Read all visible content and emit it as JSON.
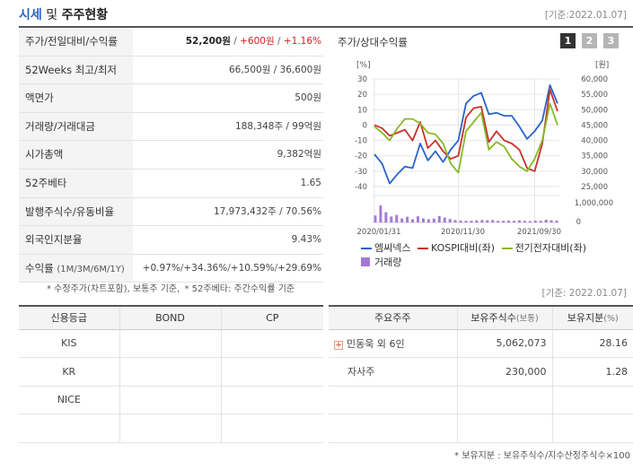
{
  "header": {
    "title_prefix": "시세",
    "title_mid": "및",
    "title_suffix": "주주현황",
    "basis": "[기준:2022.01.07]"
  },
  "info": {
    "rows": [
      {
        "label": "주가/전일대비/수익률",
        "price": "52,200원",
        "sep1": " / ",
        "change": "+600원",
        "sep2": " / ",
        "rate": "+1.16%"
      },
      {
        "label": "52Weeks 최고/최저",
        "value": "66,500원 / 36,600원"
      },
      {
        "label": "액면가",
        "value": "500원"
      },
      {
        "label": "거래량/거래대금",
        "value": "188,348주 / 99억원"
      },
      {
        "label": "시가총액",
        "value": "9,382억원"
      },
      {
        "label": "52주베타",
        "value": "1.65"
      },
      {
        "label": "발행주식수/유동비율",
        "value": "17,973,432주 / 70.56%"
      },
      {
        "label": "외국인지분율",
        "value": "9.43%"
      }
    ],
    "returns": {
      "label": "수익률",
      "label_sub": "(1M/3M/6M/1Y)",
      "r1m": "+0.97%",
      "r3m": "+34.36%",
      "r6m": "+10.59%",
      "r1y": "+29.69%",
      "sep": "/"
    },
    "notes": [
      "* 수정주가(차트포함), 보통주 기준,",
      "* 52주베타: 주간수익률 기준"
    ]
  },
  "chart_panel": {
    "title": "주가/상대수익률",
    "period_buttons": [
      "1",
      "2",
      "3"
    ]
  },
  "chart_data": {
    "type": "line",
    "left_axis": {
      "unit": "[%]",
      "ticks": [
        30,
        20,
        10,
        0,
        -10,
        -20,
        -30,
        -40
      ],
      "ylim": [
        -40,
        30
      ]
    },
    "right_axis": {
      "unit": "[원]",
      "ticks": [
        "60,000",
        "55,000",
        "50,000",
        "45,000",
        "40,000",
        "35,000",
        "30,000",
        "25,000"
      ],
      "ylim": [
        25000,
        60000
      ]
    },
    "volume_axis": {
      "ticks": [
        "1,000,000",
        "0"
      ],
      "ylim": [
        0,
        1000000
      ]
    },
    "x_labels": [
      "2020/01/31",
      "2020/11/30",
      "2021/09/30"
    ],
    "series": [
      {
        "name": "엠씨넥스",
        "color": "#2a63c8",
        "values": [
          -19,
          -25,
          -38,
          -32,
          -27,
          -28,
          -12,
          -23,
          -17,
          -24,
          -16,
          -10,
          14,
          19,
          21,
          7,
          8,
          6,
          6,
          -1,
          -9,
          -4,
          3,
          26,
          14
        ]
      },
      {
        "name": "KOSPI대비(좌)",
        "color": "#c8322a",
        "values": [
          0,
          -2,
          -7,
          -5,
          -3,
          -10,
          2,
          -15,
          -10,
          -17,
          -22,
          -20,
          5,
          11,
          12,
          -11,
          -4,
          -10,
          -12,
          -16,
          -28,
          -30,
          -12,
          23,
          9
        ]
      },
      {
        "name": "전기전자대비(좌)",
        "color": "#88b828",
        "values": [
          -1,
          -5,
          -10,
          -2,
          4,
          4,
          1,
          -5,
          -6,
          -12,
          -25,
          -31,
          -4,
          2,
          8,
          -16,
          -11,
          -14,
          -22,
          -27,
          -30,
          -22,
          -10,
          14,
          0
        ]
      }
    ],
    "volume": {
      "name": "거래량",
      "color": "#a479d6",
      "values": [
        0.26,
        0.63,
        0.38,
        0.22,
        0.28,
        0.15,
        0.21,
        0.12,
        0.23,
        0.15,
        0.12,
        0.14,
        0.24,
        0.18,
        0.13,
        0.09,
        0.07,
        0.06,
        0.06,
        0.08,
        0.09,
        0.08,
        0.09,
        0.06,
        0.06,
        0.07,
        0.06,
        0.08,
        0.06,
        0.05,
        0.07,
        0.06,
        0.1,
        0.08,
        0.07
      ]
    }
  },
  "credit": {
    "headers": [
      "신용등급",
      "BOND",
      "CP"
    ],
    "rows": [
      {
        "name": "KIS",
        "bond": "",
        "cp": ""
      },
      {
        "name": "KR",
        "bond": "",
        "cp": ""
      },
      {
        "name": "NICE",
        "bond": "",
        "cp": ""
      },
      {
        "name": "",
        "bond": "",
        "cp": ""
      }
    ]
  },
  "holders": {
    "basis": "[기준: 2022.01.07]",
    "headers": {
      "holder": "주요주주",
      "shares": "보유주식수",
      "shares_unit": "(보통)",
      "ratio": "보유지분",
      "ratio_unit": "(%)"
    },
    "rows": [
      {
        "name": "민동욱 외 6인",
        "shares": "5,062,073",
        "ratio": "28.16",
        "expandable": true
      },
      {
        "name": "자사주",
        "shares": "230,000",
        "ratio": "1.28",
        "expandable": false
      },
      {
        "name": "",
        "shares": "",
        "ratio": "",
        "expandable": false
      },
      {
        "name": "",
        "shares": "",
        "ratio": "",
        "expandable": false
      }
    ],
    "note": "* 보유지분 : 보유주식수/지수산정주식수×100"
  }
}
